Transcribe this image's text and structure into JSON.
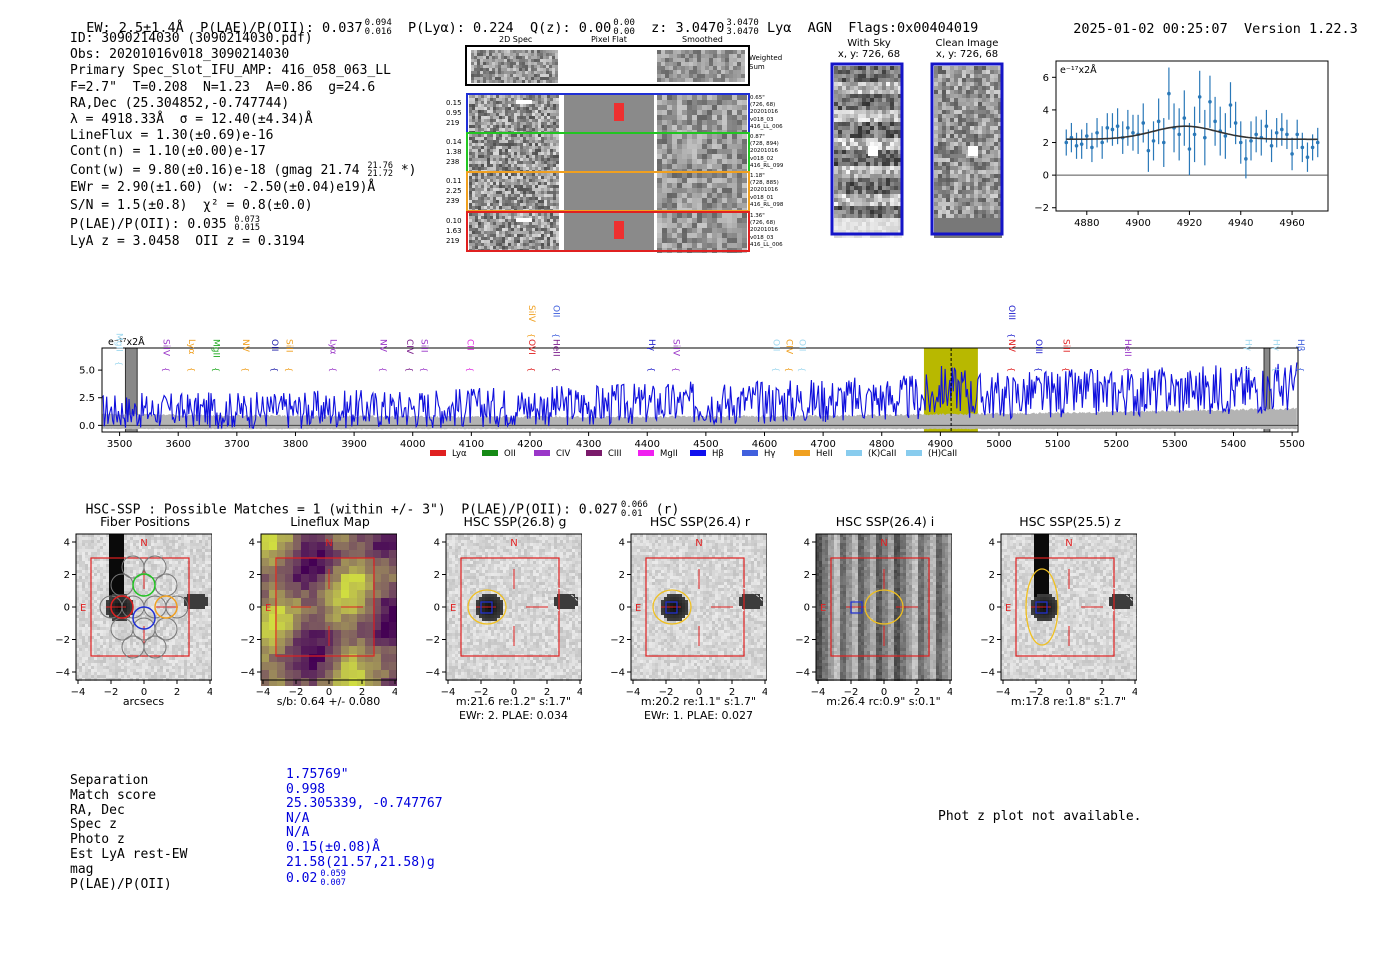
{
  "header": {
    "ew": "EW: 2.5±1.4Å",
    "plae_label": "P(LAE)/P(OII): 0.037",
    "plae_hi": "0.094",
    "plae_lo": "0.016",
    "plya": "P(Lyα): 0.224",
    "qz": "Q(z): 0.00",
    "qz_hi": "0.00",
    "qz_lo": "0.00",
    "z": "z: 3.0470",
    "z_hi": "3.0470",
    "z_lo": "3.0470",
    "z_tail": "Lyα  AGN  Flags:0x00404019",
    "timestamp": "2025-01-02 00:25:07",
    "version": "Version 1.22.3"
  },
  "info": {
    "lines": [
      "ID: 3090214030 (3090214030.pdf)",
      "Obs: 20201016v018_3090214030",
      "Primary Spec_Slot_IFU_AMP: 416_058_063_LL",
      "F=2.7\"  T=0.208  N=1.23  A=0.86  g=24.6",
      "RA,Dec (25.304852,-0.747744)",
      "λ = 4918.33Å  σ = 12.40(±4.34)Å",
      "LineFlux = 1.30(±0.69)e-16",
      "Cont(n) = 1.10(±0.00)e-17"
    ],
    "contw": "Cont(w) = 9.80(±0.16)e-18 (gmag 21.74",
    "contw_hi": "21.76",
    "contw_lo": "21.72",
    "contw_tail": " *)",
    "ewr": "EWr = 2.90(±1.60) (w: -2.50(±0.04)e19)Å",
    "sn": "S/N = 1.5(±0.8)  χ² = 0.8(±0.0)",
    "plae2": "P(LAE)/P(OII): 0.035",
    "plae2_hi": "0.073",
    "plae2_lo": "0.015",
    "lyaz": "LyA z = 3.0458  OII z = 0.3194"
  },
  "cutouts": {
    "col_headers": [
      "2D Spec",
      "Pixel Flat",
      "Smoothed"
    ],
    "weighted_sum": "Weighted Sum",
    "rows": [
      {
        "left": [
          "0.15",
          "0.95",
          "219"
        ],
        "right": [
          "0.65\"",
          "(726, 68)",
          "20201016",
          "v018_03",
          "416_LL_006"
        ],
        "color": "#1f2fd6"
      },
      {
        "left": [
          "0.14",
          "1.38",
          "238"
        ],
        "right": [
          "0.87\"",
          "(728, 894)",
          "20201016",
          "v018_02",
          "416_RL_099"
        ],
        "color": "#22c522"
      },
      {
        "left": [
          "0.11",
          "2.25",
          "239"
        ],
        "right": [
          "1.18\"",
          "(728, 885)",
          "20201016",
          "v018_01",
          "416_RL_098"
        ],
        "color": "#f0a020"
      },
      {
        "left": [
          "0.10",
          "1.63",
          "219"
        ],
        "right": [
          "1.36\"",
          "(726, 68)",
          "20201016",
          "v018_03",
          "416_LL_006"
        ],
        "color": "#e02020"
      }
    ]
  },
  "stamps": {
    "with_sky": {
      "title": "With Sky",
      "sub": "x, y: 726, 68"
    },
    "clean": {
      "title": "Clean Image",
      "sub": "x, y: 726, 68"
    }
  },
  "zoom_chart": {
    "ylabel": "e⁻¹⁷x2Å",
    "x": [
      4872,
      4874,
      4876,
      4878,
      4880,
      4882,
      4884,
      4886,
      4888,
      4890,
      4892,
      4894,
      4896,
      4898,
      4900,
      4902,
      4904,
      4906,
      4908,
      4910,
      4912,
      4914,
      4916,
      4918,
      4920,
      4922,
      4924,
      4926,
      4928,
      4930,
      4932,
      4934,
      4936,
      4938,
      4940,
      4942,
      4944,
      4946,
      4948,
      4950,
      4952,
      4954,
      4956,
      4958,
      4960,
      4962,
      4964,
      4966,
      4968,
      4970
    ],
    "y": [
      2.0,
      2.3,
      1.8,
      1.9,
      2.4,
      1.7,
      2.6,
      2.0,
      2.9,
      2.8,
      3.0,
      2.3,
      2.9,
      2.6,
      2.5,
      3.2,
      1.5,
      2.1,
      3.3,
      2.0,
      5.0,
      2.9,
      2.5,
      3.5,
      1.6,
      2.5,
      4.8,
      2.3,
      4.5,
      3.3,
      2.7,
      2.4,
      4.3,
      3.2,
      2.0,
      1.0,
      2.1,
      2.5,
      2.3,
      3.0,
      1.8,
      2.6,
      2.8,
      2.5,
      1.3,
      2.5,
      1.7,
      1.1,
      1.7,
      2.0
    ],
    "err": [
      0.8,
      0.9,
      0.8,
      0.9,
      0.8,
      0.9,
      0.9,
      1.0,
      0.9,
      1.0,
      1.1,
      1.0,
      1.1,
      1.1,
      1.2,
      1.2,
      1.3,
      1.2,
      1.4,
      1.5,
      1.6,
      1.5,
      1.6,
      1.7,
      1.6,
      1.7,
      1.6,
      1.7,
      1.6,
      1.5,
      1.5,
      1.4,
      1.4,
      1.3,
      1.3,
      1.2,
      1.2,
      1.1,
      1.1,
      1.0,
      1.0,
      0.9,
      1.0,
      0.9,
      1.0,
      0.9,
      0.9,
      0.9,
      0.8,
      0.9
    ],
    "fit_center": 4918.33,
    "fit_sigma": 12.4,
    "fit_base": 2.2,
    "fit_amp": 0.8,
    "xlim": [
      4868,
      4974
    ],
    "ylim": [
      -2.2,
      7.0
    ],
    "xticks": [
      "4880",
      "4900",
      "4920",
      "4940",
      "4960"
    ],
    "yticks": [
      "−2",
      "0",
      "2",
      "4",
      "6"
    ]
  },
  "chart_data": {
    "type": "line",
    "title": "",
    "ylabel": "e⁻¹⁷x2Å",
    "xlim": [
      3470,
      5510
    ],
    "ylim": [
      -0.6,
      7.0
    ],
    "xticks": [
      "3500",
      "3600",
      "3700",
      "3800",
      "3900",
      "4000",
      "4100",
      "4200",
      "4300",
      "4400",
      "4500",
      "4600",
      "4700",
      "4800",
      "4900",
      "5000",
      "5100",
      "5200",
      "5300",
      "5400",
      "5500"
    ],
    "yticks": [
      "0.0",
      "2.5",
      "5.0"
    ],
    "highlight_range": [
      4872,
      4964
    ],
    "line_center": 4918.33,
    "series": [
      {
        "name": "",
        "color": "#1010dd",
        "x_start": 3470,
        "x_step": 2,
        "n": 1020
      }
    ],
    "line_labels": [
      {
        "label": "MgII",
        "wave": 3490,
        "color": "#9fd8ef",
        "row": 0
      },
      {
        "label": "SiIV",
        "wave": 3570,
        "color": "#9a36c8",
        "row": 1
      },
      {
        "label": "Lyα",
        "wave": 3613,
        "color": "#f0a020",
        "row": 1
      },
      {
        "label": "MgII",
        "wave": 3655,
        "color": "#22aa22",
        "row": 1
      },
      {
        "label": "NV",
        "wave": 3705,
        "color": "#f0a020",
        "row": 1
      },
      {
        "label": "OII",
        "wave": 3755,
        "color": "#2020aa",
        "row": 1
      },
      {
        "label": "SiII",
        "wave": 3780,
        "color": "#f0a020",
        "row": 1
      },
      {
        "label": "Lyα",
        "wave": 3855,
        "color": "#9a36c8",
        "row": 1
      },
      {
        "label": "NV",
        "wave": 3940,
        "color": "#9a36c8",
        "row": 1
      },
      {
        "label": "CIV",
        "wave": 3985,
        "color": "#7a1a8a",
        "row": 1
      },
      {
        "label": "SiII",
        "wave": 4010,
        "color": "#9a36c8",
        "row": 1
      },
      {
        "label": "CII",
        "wave": 4088,
        "color": "#e030e0",
        "row": 1
      },
      {
        "label": "SiIV",
        "wave": 4193,
        "color": "#f0a020",
        "row": 2
      },
      {
        "label": "OVI",
        "wave": 4193,
        "color": "#e02020",
        "row": 1
      },
      {
        "label": "OII",
        "wave": 4235,
        "color": "#4060dd",
        "row": 2
      },
      {
        "label": "HeII",
        "wave": 4235,
        "color": "#7a1a8a",
        "row": 1
      },
      {
        "label": "Hγ",
        "wave": 4398,
        "color": "#2020cc",
        "row": 1
      },
      {
        "label": "SiIV",
        "wave": 4440,
        "color": "#9a36c8",
        "row": 1
      },
      {
        "label": "OII",
        "wave": 4610,
        "color": "#9fd8ef",
        "row": 1
      },
      {
        "label": "CIV",
        "wave": 4632,
        "color": "#f0a020",
        "row": 1
      },
      {
        "label": "OII",
        "wave": 4655,
        "color": "#9fd8ef",
        "row": 1
      },
      {
        "label": "OIII",
        "wave": 5012,
        "color": "#2020cc",
        "row": 2
      },
      {
        "label": "NV",
        "wave": 5012,
        "color": "#e02020",
        "row": 1
      },
      {
        "label": "OIII",
        "wave": 5058,
        "color": "#2020cc",
        "row": 1
      },
      {
        "label": "SiII",
        "wave": 5105,
        "color": "#e02020",
        "row": 1
      },
      {
        "label": "HeII",
        "wave": 5210,
        "color": "#9a36c8",
        "row": 1
      },
      {
        "label": "Hγ",
        "wave": 5415,
        "color": "#9fd8ef",
        "row": 1
      },
      {
        "label": "Hγ",
        "wave": 5463,
        "color": "#9fd8ef",
        "row": 1
      },
      {
        "label": "Hβ",
        "wave": 5505,
        "color": "#4060dd",
        "row": 1
      }
    ],
    "legend": [
      {
        "label": "Lyα",
        "color": "#e02020"
      },
      {
        "label": "OII",
        "color": "#158a15"
      },
      {
        "label": "CIV",
        "color": "#9a36c8"
      },
      {
        "label": "CIII",
        "color": "#7a1a6a"
      },
      {
        "label": "MgII",
        "color": "#f020f0"
      },
      {
        "label": "Hβ",
        "color": "#1010ee"
      },
      {
        "label": "Hγ",
        "color": "#4060dd"
      },
      {
        "label": "HeII",
        "color": "#f0a020"
      },
      {
        "label": "(K)CaII",
        "color": "#88ccee"
      },
      {
        "label": "(H)CaII",
        "color": "#88ccee"
      }
    ],
    "legend_placement": "bottom-center"
  },
  "hsc": {
    "line_main": "HSC-SSP : Possible Matches = 1 (within +/- 3\")  P(LAE)/P(OII): 0.027",
    "line_hi": "0.066",
    "line_lo": "0.01",
    "line_tail": "(r)"
  },
  "image_panels": [
    {
      "title": "Fiber Positions",
      "xlabel": "arcsecs",
      "bottom": ""
    },
    {
      "title": "Lineflux Map",
      "xlabel": "s/b: 0.64 +/- 0.080",
      "bottom": ""
    },
    {
      "title": "HSC SSP(26.8) g",
      "xlabel": "m:21.6  re:1.2\"  s:1.7\"",
      "bottom": "EWr: 2. PLAE: 0.034"
    },
    {
      "title": "HSC SSP(26.4) r",
      "xlabel": "m:20.2  re:1.1\"  s:1.7\"",
      "bottom": "EWr: 1. PLAE: 0.027"
    },
    {
      "title": "HSC SSP(26.4) i",
      "xlabel": "m:26.4 rc:0.9\"  s:0.1\"",
      "bottom": ""
    },
    {
      "title": "HSC SSP(25.5) z",
      "xlabel": "m:17.8  re:1.8\"  s:1.7\"",
      "bottom": ""
    }
  ],
  "panel_axis": {
    "ticks": [
      "−4",
      "−2",
      "0",
      "2",
      "4"
    ],
    "n_label": "N",
    "e_label": "E"
  },
  "match_table": {
    "labels": [
      "Separation",
      "Match score",
      "RA, Dec",
      "Spec z",
      "Photo z",
      "Est LyA rest-EW",
      "mag",
      "P(LAE)/P(OII)"
    ],
    "values": [
      "1.75769\"",
      "0.998",
      "25.305339, -0.747767",
      "N/A",
      "N/A",
      "0.15(±0.08)Å",
      "21.58(21.57,21.58)g",
      "0.02"
    ],
    "plae_hi": "0.059",
    "plae_lo": "0.007"
  },
  "photz_note": "Phot z plot not available.",
  "colors": {
    "spectrum": "#1010dd",
    "highlight": "#b8b800",
    "zoom_points": "#2a78b8",
    "match_values": "#0000dd"
  }
}
